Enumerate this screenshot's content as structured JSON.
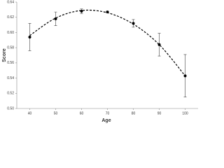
{
  "chart_data": {
    "type": "scatter",
    "x_label": "Age",
    "y_label": "Score",
    "x": [
      40,
      50,
      60,
      70,
      80,
      90,
      100
    ],
    "values": [
      0.594,
      0.618,
      0.628,
      0.627,
      0.612,
      0.584,
      0.543
    ],
    "errors": [
      0.018,
      0.009,
      0.003,
      0.001,
      0.005,
      0.015,
      0.028
    ],
    "trendline": {
      "values": [
        0.596,
        0.619,
        0.629,
        0.626,
        0.611,
        0.584,
        0.543
      ],
      "dashed": true
    },
    "color": "#000000",
    "xlim": [
      35,
      105
    ],
    "xticks": [
      40,
      50,
      60,
      70,
      80,
      90,
      100
    ],
    "ylim": [
      0.5,
      0.64
    ],
    "yticks": [
      {
        "value": 0.5,
        "label": "0.50"
      },
      0.52,
      0.54,
      0.56,
      0.58,
      {
        "value": 0.6,
        "label": "0.60"
      },
      0.62,
      0.64
    ]
  }
}
